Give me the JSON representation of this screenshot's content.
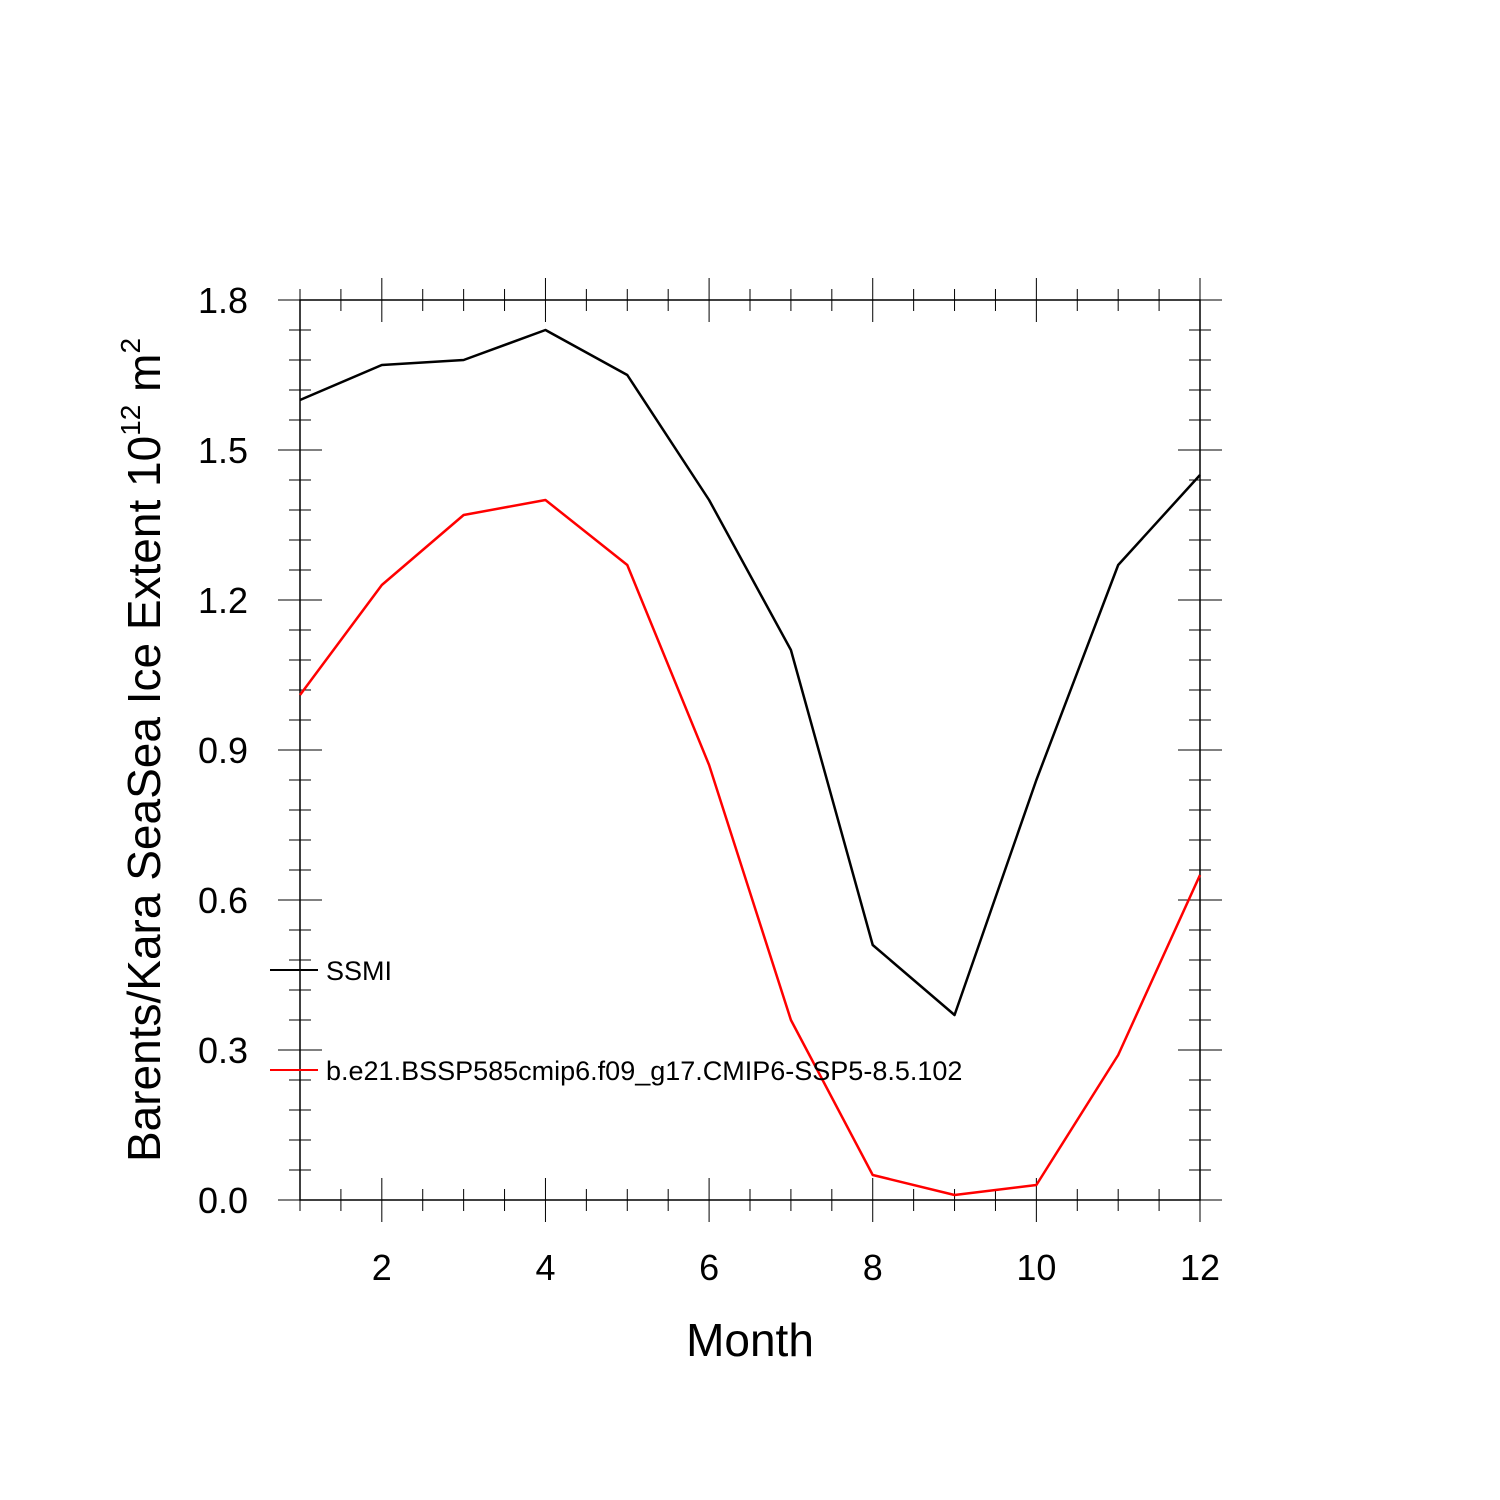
{
  "chart_data": {
    "type": "line",
    "xlabel": "Month",
    "ylabel": {
      "main": "Barents/Kara SeaSea Ice Extent 10",
      "superscript_1": "12",
      "middle": " m",
      "superscript_2": "2"
    },
    "x": [
      1,
      2,
      3,
      4,
      5,
      6,
      7,
      8,
      9,
      10,
      11,
      12
    ],
    "xlim": [
      1,
      12
    ],
    "ylim": [
      0.0,
      1.8
    ],
    "x_ticks": [
      2,
      4,
      6,
      8,
      10,
      12
    ],
    "x_tick_labels": [
      "2",
      "4",
      "6",
      "8",
      "10",
      "12"
    ],
    "y_ticks": [
      0.0,
      0.3,
      0.6,
      0.9,
      1.2,
      1.5,
      1.8
    ],
    "y_tick_labels": [
      "0.0",
      "0.3",
      "0.6",
      "0.9",
      "1.2",
      "1.5",
      "1.8"
    ],
    "grid": false,
    "legend_position": "lower-left inside",
    "series": [
      {
        "name": "SSMI",
        "color": "#000000",
        "values": [
          1.6,
          1.67,
          1.68,
          1.74,
          1.65,
          1.4,
          1.1,
          0.51,
          0.37,
          0.84,
          1.27,
          1.45
        ]
      },
      {
        "name": "b.e21.BSSP585cmip6.f09_g17.CMIP6-SSP5-8.5.102",
        "color": "#ff0000",
        "values": [
          1.01,
          1.23,
          1.37,
          1.4,
          1.27,
          0.87,
          0.36,
          0.05,
          0.01,
          0.03,
          0.29,
          0.65
        ]
      }
    ]
  }
}
